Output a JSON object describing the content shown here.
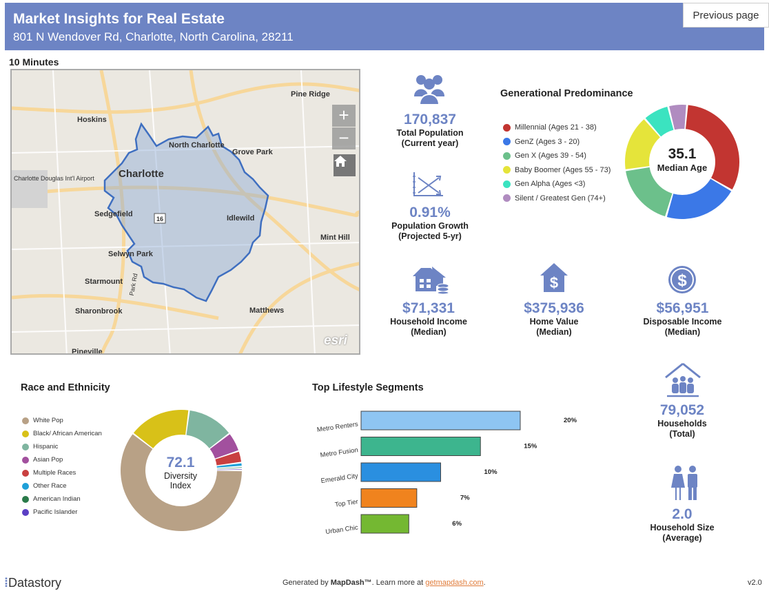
{
  "header": {
    "title": "Market Insights for Real Estate",
    "address": "801 N Wendover Rd, Charlotte, North Carolina, 28211",
    "prev_button": "Previous page"
  },
  "map": {
    "drive_label": "10 Minutes",
    "places": [
      "Pine Ridge",
      "Hoskins",
      "North Charlotte",
      "Grove Park",
      "Charlotte",
      "Charlotte Douglas Int'l Airport",
      "Sedgefield",
      "Idlewild",
      "Mint Hill",
      "Selwyn Park",
      "Starmount",
      "Sharonbrook",
      "Matthews",
      "Pineville",
      "Park Rd",
      "16"
    ],
    "zoom_in": "+",
    "zoom_out": "−",
    "attribution": "esri"
  },
  "stats": {
    "population": {
      "value": "170,837",
      "label1": "Total Population",
      "label2": "(Current year)"
    },
    "growth": {
      "value": "0.91%",
      "label1": "Population Growth",
      "label2": "(Projected 5-yr)"
    },
    "income": {
      "value": "$71,331",
      "label1": "Household Income",
      "label2": "(Median)"
    },
    "home_value": {
      "value": "$375,936",
      "label1": "Home Value",
      "label2": "(Median)"
    },
    "disposable": {
      "value": "$56,951",
      "label1": "Disposable Income",
      "label2": "(Median)"
    },
    "households": {
      "value": "79,052",
      "label1": "Households",
      "label2": "(Total)"
    },
    "household_size": {
      "value": "2.0",
      "label1": "Household Size",
      "label2": "(Average)"
    }
  },
  "generational": {
    "title": "Generational Predominance",
    "center_value": "35.1",
    "center_label": "Median Age",
    "legend": [
      {
        "name": "Millennial (Ages 21 - 38)",
        "color": "#c23531"
      },
      {
        "name": "GenZ (Ages 3 - 20)",
        "color": "#3b78e7"
      },
      {
        "name": "Gen X (Ages 39 - 54)",
        "color": "#6cc08b"
      },
      {
        "name": "Baby Boomer (Ages 55 - 73)",
        "color": "#e5e43a"
      },
      {
        "name": "Gen Alpha (Ages <3)",
        "color": "#3be3c0"
      },
      {
        "name": "Silent / Greatest Gen (74+)",
        "color": "#b08cc0"
      }
    ]
  },
  "race": {
    "title": "Race and Ethnicity",
    "center_value": "72.1",
    "center_label1": "Diversity",
    "center_label2": "Index",
    "legend": [
      {
        "name": "White Pop",
        "color": "#b8a186"
      },
      {
        "name": "Black/ African American",
        "color": "#d8c118"
      },
      {
        "name": "Hispanic",
        "color": "#7fb5a0"
      },
      {
        "name": "Asian Pop",
        "color": "#a2509e"
      },
      {
        "name": "Multiple Races",
        "color": "#c94040"
      },
      {
        "name": "Other Race",
        "color": "#1fa0d8"
      },
      {
        "name": "American Indian",
        "color": "#2a7a4a"
      },
      {
        "name": "Pacific Islander",
        "color": "#5b3fc4"
      }
    ]
  },
  "lifestyle": {
    "title": "Top Lifestyle Segments"
  },
  "chart_data": [
    {
      "type": "pie",
      "categories": [
        "Millennial (Ages 21 - 38)",
        "GenZ (Ages 3 - 20)",
        "Gen X (Ages 39 - 54)",
        "Baby Boomer (Ages 55 - 73)",
        "Gen Alpha (Ages <3)",
        "Silent / Greatest Gen (74+)"
      ],
      "values": [
        30,
        20,
        17,
        15,
        7,
        5
      ],
      "colors": [
        "#c23531",
        "#3b78e7",
        "#6cc08b",
        "#e5e43a",
        "#3be3c0",
        "#b08cc0"
      ]
    },
    {
      "type": "pie",
      "categories": [
        "White Pop",
        "Black/ African American",
        "Hispanic",
        "Asian Pop",
        "Multiple Races",
        "Other Race",
        "American Indian",
        "Pacific Islander"
      ],
      "values": [
        58,
        16,
        12,
        5,
        3,
        1,
        0.5,
        0.5
      ],
      "colors": [
        "#b8a186",
        "#d8c118",
        "#7fb5a0",
        "#a2509e",
        "#c94040",
        "#1fa0d8",
        "#2a7a4a",
        "#5b3fc4"
      ]
    },
    {
      "type": "bar",
      "categories": [
        "Metro Renters",
        "Metro Fusion",
        "Emerald City",
        "Top Tier",
        "Urban Chic"
      ],
      "values": [
        20,
        15,
        10,
        7,
        6
      ],
      "labels": [
        "20%",
        "15%",
        "10%",
        "7%",
        "6%"
      ],
      "colors": [
        "#8ec5f2",
        "#3db58e",
        "#2a8fe0",
        "#f0831e",
        "#74b832"
      ],
      "xlim": [
        0,
        30
      ]
    }
  ],
  "footer": {
    "brand": "Datastory",
    "generated_prefix": "Generated by",
    "generated_brand": "MapDash™",
    "learn_more": ". Learn more at",
    "link": "getmapdash.com",
    "version": "v2.0"
  }
}
